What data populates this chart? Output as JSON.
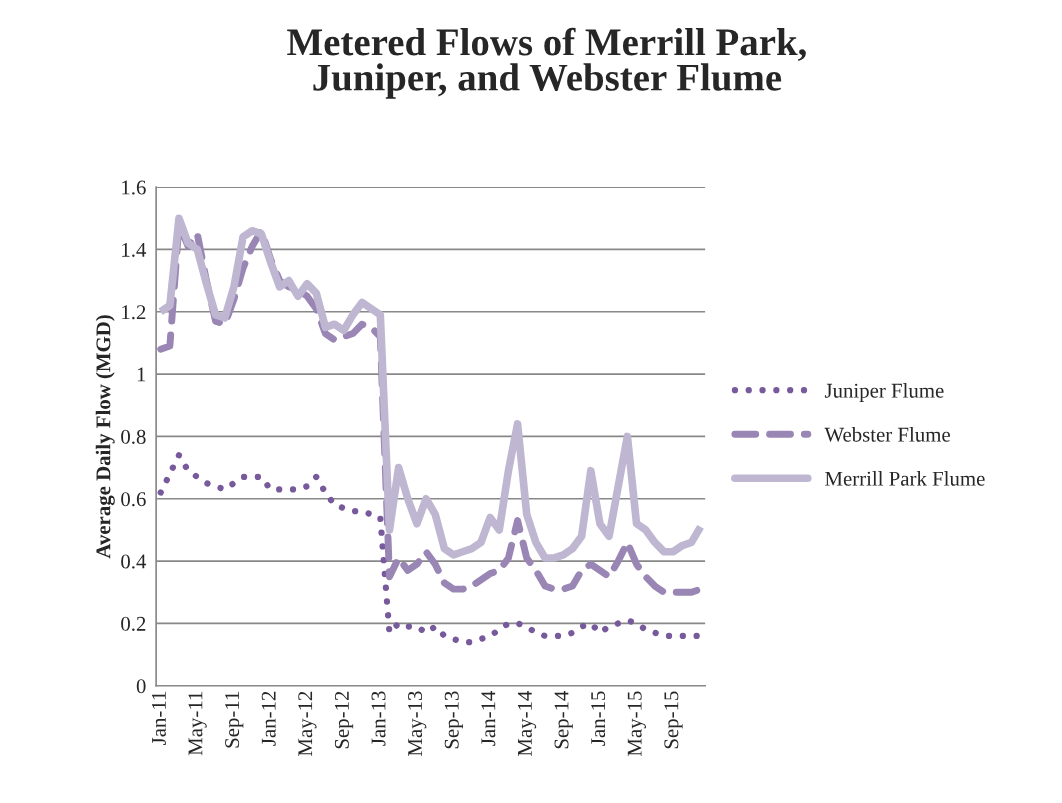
{
  "chart_data": {
    "type": "line",
    "title": "Metered Flows of Merrill Park,\nJuniper, and Webster Flume",
    "ylabel": "Average Daily Flow (MGD)",
    "categories": [
      "Jan-11",
      null,
      null,
      null,
      "May-11",
      null,
      null,
      null,
      "Sep-11",
      null,
      null,
      null,
      "Jan-12",
      null,
      null,
      null,
      "May-12",
      null,
      null,
      null,
      "Sep-12",
      null,
      null,
      null,
      "Jan-13",
      null,
      null,
      null,
      "May-13",
      null,
      null,
      null,
      "Sep-13",
      null,
      null,
      null,
      "Jan-14",
      null,
      null,
      null,
      "May-14",
      null,
      null,
      null,
      "Sep-14",
      null,
      null,
      null,
      "Jan-15",
      null,
      null,
      null,
      "May-15",
      null,
      null,
      null,
      "Sep-15",
      null,
      null,
      null
    ],
    "series": [
      {
        "name": "Juniper Flume",
        "color": "#775a9b",
        "line_style": "dotted",
        "values": [
          0.62,
          0.68,
          0.74,
          0.69,
          0.67,
          0.65,
          0.64,
          0.63,
          0.65,
          0.67,
          0.67,
          0.67,
          0.63,
          0.63,
          0.63,
          0.63,
          0.64,
          0.67,
          0.62,
          0.58,
          0.57,
          0.56,
          0.56,
          0.55,
          0.54,
          0.17,
          0.2,
          0.19,
          0.19,
          0.17,
          0.19,
          0.16,
          0.15,
          0.14,
          0.14,
          0.15,
          0.16,
          0.18,
          0.2,
          0.2,
          0.19,
          0.17,
          0.16,
          0.16,
          0.16,
          0.17,
          0.19,
          0.2,
          0.17,
          0.19,
          0.2,
          0.21,
          0.2,
          0.18,
          0.17,
          0.16,
          0.16,
          0.16,
          0.16,
          0.16
        ]
      },
      {
        "name": "Webster Flume",
        "color": "#9a86b4",
        "line_style": "dashed",
        "values": [
          1.08,
          1.09,
          1.48,
          1.41,
          1.45,
          1.3,
          1.17,
          1.16,
          1.24,
          1.34,
          1.41,
          1.46,
          1.37,
          1.3,
          1.28,
          1.27,
          1.25,
          1.21,
          1.13,
          1.11,
          1.12,
          1.13,
          1.16,
          1.15,
          1.12,
          0.35,
          0.41,
          0.37,
          0.39,
          0.43,
          0.39,
          0.33,
          0.31,
          0.31,
          0.32,
          0.34,
          0.36,
          0.37,
          0.41,
          0.53,
          0.41,
          0.37,
          0.32,
          0.31,
          0.31,
          0.32,
          0.37,
          0.39,
          0.37,
          0.35,
          0.4,
          0.46,
          0.39,
          0.35,
          0.32,
          0.3,
          0.3,
          0.3,
          0.3,
          0.31
        ]
      },
      {
        "name": "Merrill Park Flume",
        "color": "#bfb7d1",
        "line_style": "solid",
        "values": [
          1.2,
          1.22,
          1.5,
          1.42,
          1.4,
          1.29,
          1.19,
          1.18,
          1.28,
          1.44,
          1.46,
          1.45,
          1.36,
          1.28,
          1.3,
          1.25,
          1.29,
          1.26,
          1.15,
          1.16,
          1.14,
          1.19,
          1.23,
          1.21,
          1.19,
          0.5,
          0.7,
          0.6,
          0.52,
          0.6,
          0.55,
          0.44,
          0.42,
          0.43,
          0.44,
          0.46,
          0.54,
          0.5,
          0.69,
          0.84,
          0.55,
          0.46,
          0.41,
          0.41,
          0.42,
          0.44,
          0.48,
          0.69,
          0.52,
          0.48,
          0.64,
          0.8,
          0.52,
          0.5,
          0.46,
          0.43,
          0.43,
          0.45,
          0.46,
          0.51
        ]
      }
    ],
    "ylim": [
      0,
      1.6
    ],
    "yticks": [
      0,
      0.2,
      0.4,
      0.6,
      0.8,
      1,
      1.2,
      1.4,
      1.6
    ],
    "grid": "y",
    "legend": "right"
  }
}
